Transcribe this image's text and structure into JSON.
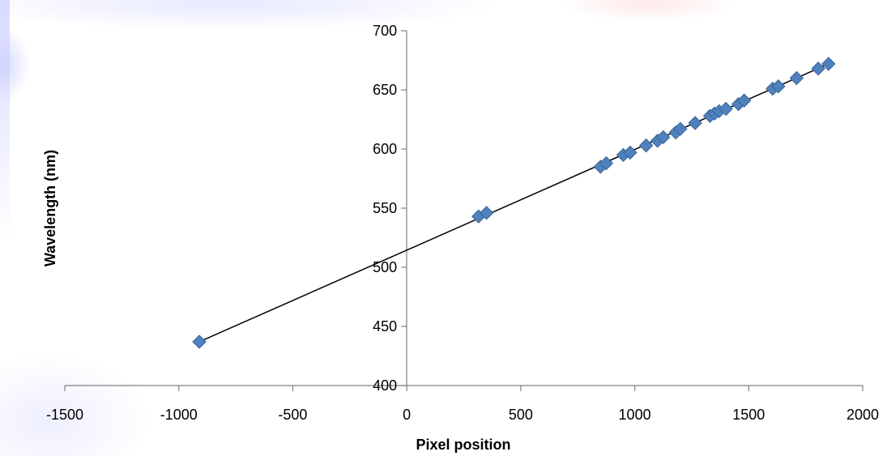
{
  "chart_data": {
    "type": "scatter",
    "title": "",
    "xlabel": "Pixel position",
    "ylabel": "Wavelength (nm)",
    "xlim": [
      -1500,
      2000
    ],
    "ylim": [
      400,
      700
    ],
    "x_ticks": [
      -1500,
      -1000,
      -500,
      0,
      500,
      1000,
      1500,
      2000
    ],
    "y_ticks": [
      400,
      450,
      500,
      550,
      600,
      650,
      700
    ],
    "grid": false,
    "legend": "none",
    "marker": "diamond",
    "marker_color": "#4F81BD",
    "marker_edge_color": "#3A6597",
    "trendline_color": "#000000",
    "series": [
      {
        "points": [
          [
            -910,
            437
          ],
          [
            315,
            543
          ],
          [
            350,
            546
          ],
          [
            850,
            585
          ],
          [
            875,
            588
          ],
          [
            950,
            595
          ],
          [
            980,
            597
          ],
          [
            1050,
            603
          ],
          [
            1100,
            607
          ],
          [
            1125,
            610
          ],
          [
            1180,
            614
          ],
          [
            1200,
            617
          ],
          [
            1265,
            622
          ],
          [
            1330,
            628
          ],
          [
            1350,
            630
          ],
          [
            1370,
            632
          ],
          [
            1400,
            634
          ],
          [
            1455,
            638
          ],
          [
            1480,
            641
          ],
          [
            1605,
            651
          ],
          [
            1630,
            653
          ],
          [
            1710,
            660
          ],
          [
            1805,
            668
          ],
          [
            1850,
            672
          ]
        ]
      }
    ],
    "trendline": {
      "from": [
        -910,
        437
      ],
      "to": [
        1850,
        672
      ]
    }
  }
}
